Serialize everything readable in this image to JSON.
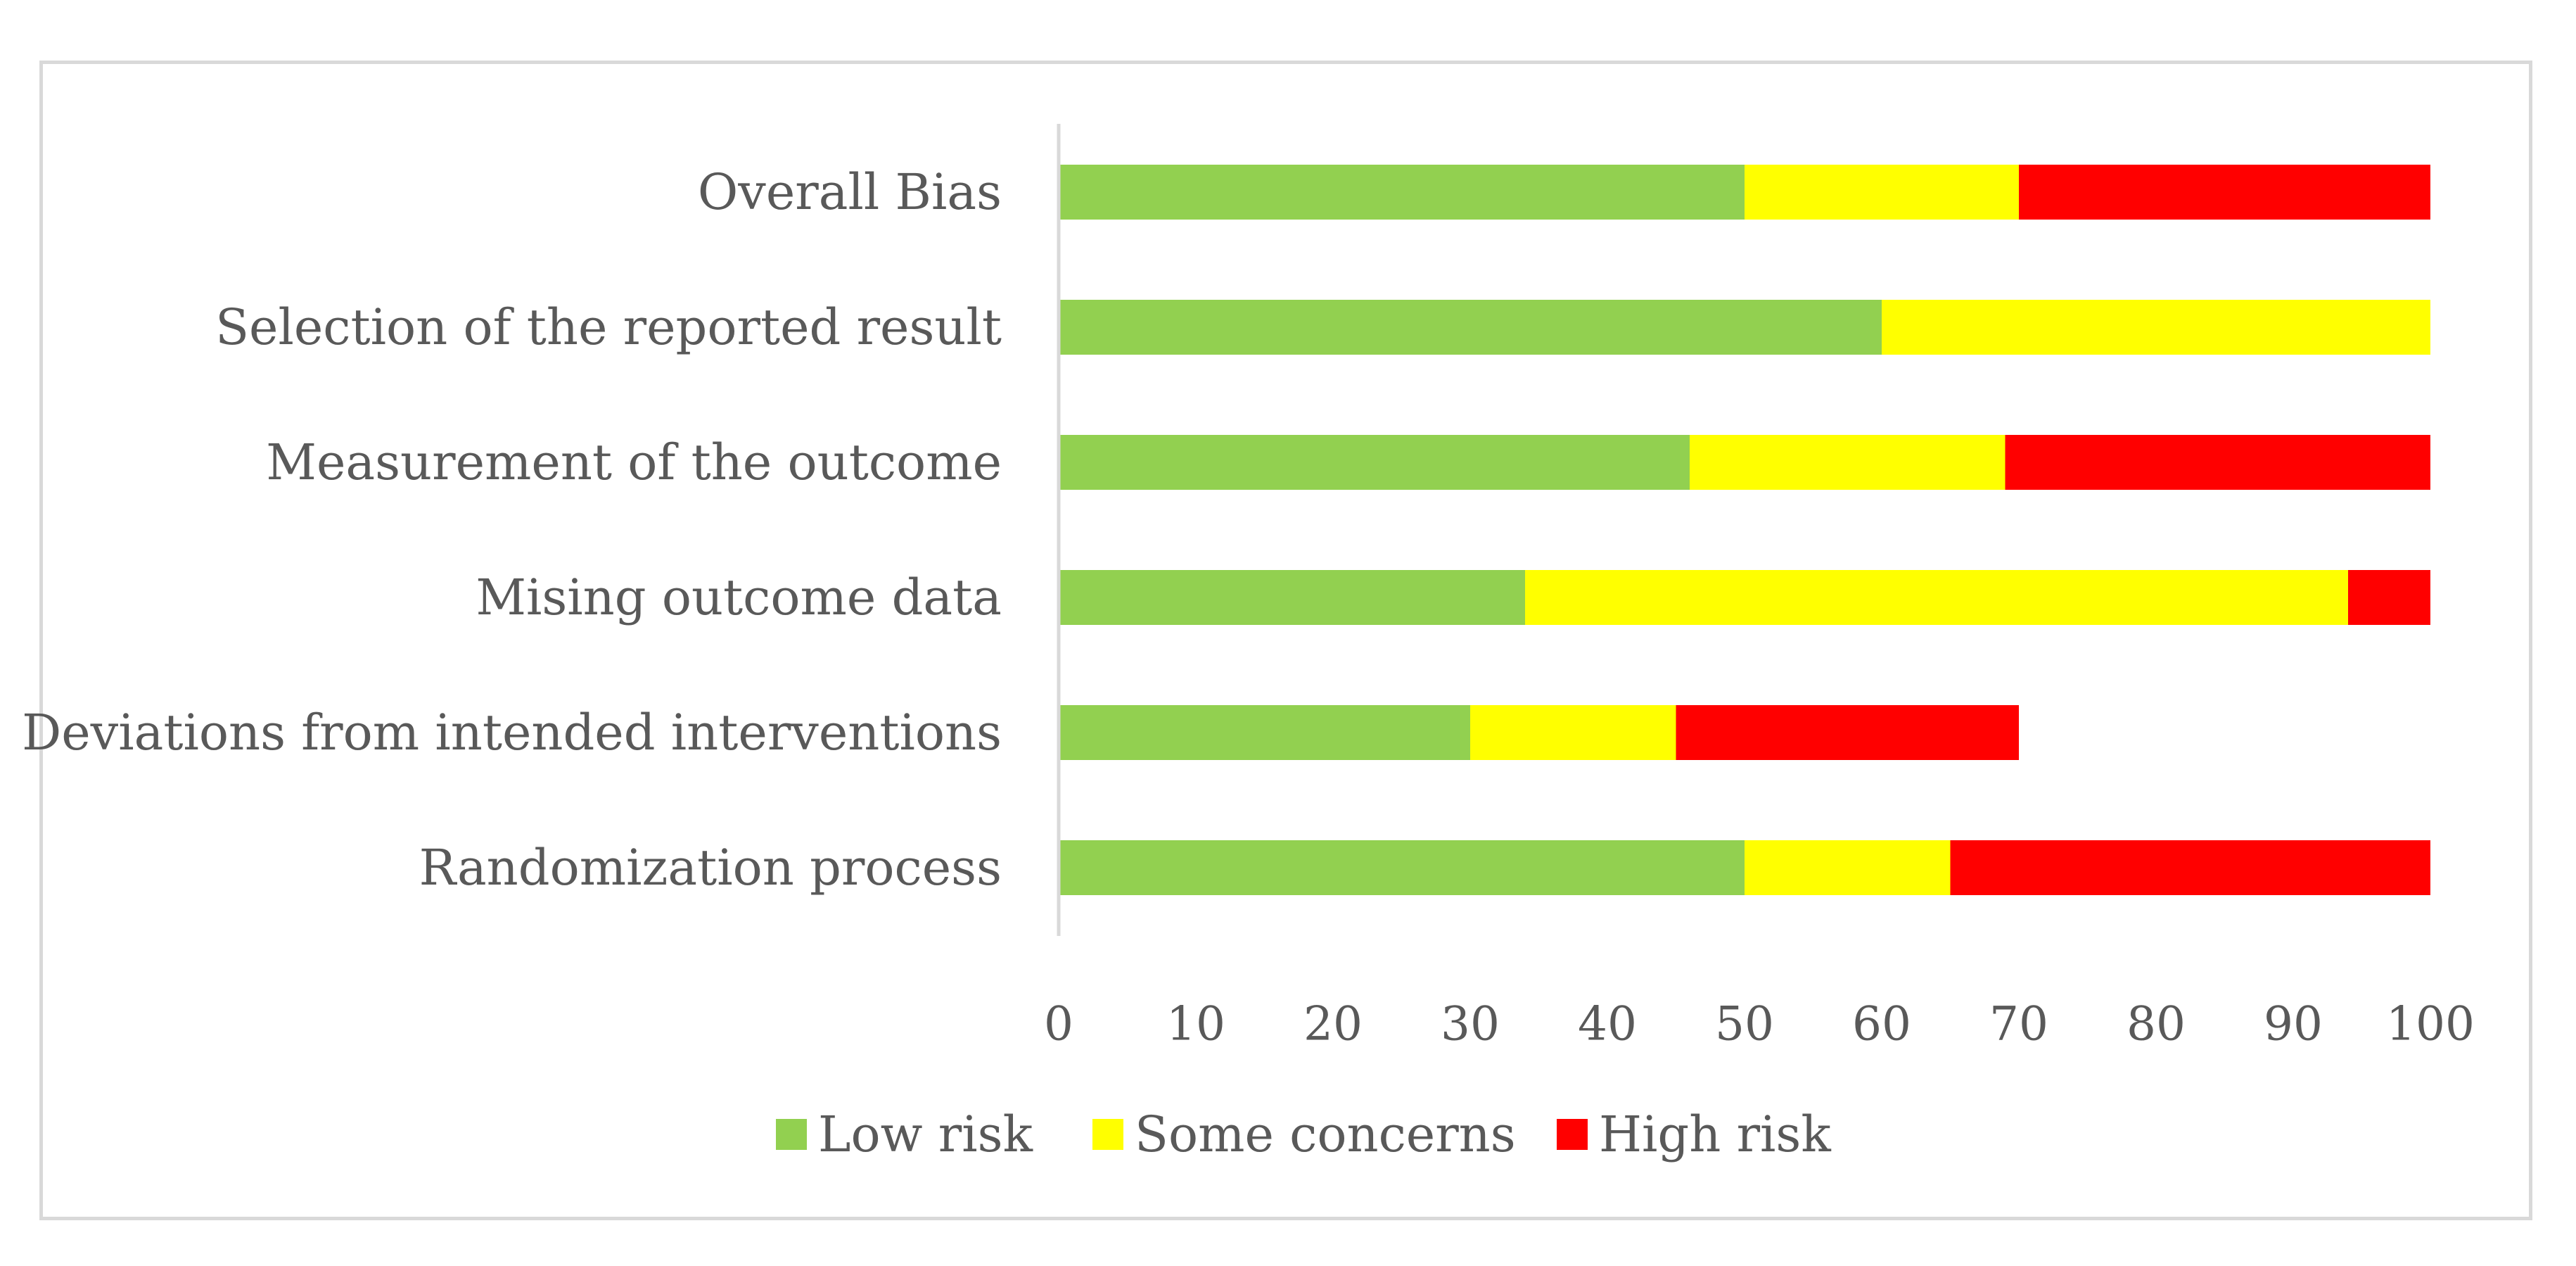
{
  "chart_data": {
    "type": "bar",
    "orientation": "horizontal",
    "stacked": true,
    "title": "",
    "xlabel": "",
    "ylabel": "",
    "xlim": [
      0,
      100
    ],
    "xticks": [
      "0",
      "10",
      "20",
      "30",
      "40",
      "50",
      "60",
      "70",
      "80",
      "90",
      "100"
    ],
    "grid": false,
    "legend_position": "bottom",
    "categories": [
      "Overall Bias",
      "Selection of the reported result",
      "Measurement of the outcome",
      "Mising outcome data",
      "Deviations from intended interventions",
      "Randomization process"
    ],
    "series": [
      {
        "name": "Low risk",
        "color": "#92d050",
        "values": [
          50,
          60,
          46,
          34,
          30,
          50
        ]
      },
      {
        "name": "Some concerns",
        "color": "#ffff00",
        "values": [
          20,
          40,
          23,
          60,
          15,
          15
        ]
      },
      {
        "name": "High risk",
        "color": "#ff0000",
        "values": [
          30,
          0,
          31,
          6,
          25,
          35
        ]
      }
    ]
  }
}
